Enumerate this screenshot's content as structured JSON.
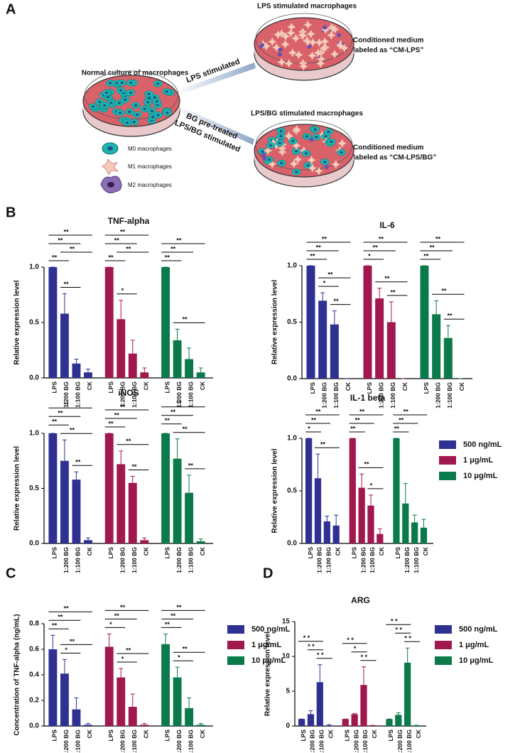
{
  "figure": {
    "panel_labels": [
      "A",
      "B",
      "C",
      "D"
    ],
    "panel_a": {
      "normal_title": "Normal culture of macrophages",
      "lps_title": "LPS stimulated macrophages",
      "lpsbg_title": "LPS/BG stimulated macrophages",
      "arrow1": "LPS stimulated",
      "arrow2_line1": "BG pre-treated",
      "arrow2_line2": "LPS/BG stimulated",
      "cm_lps": [
        "Conditioned medium",
        "labeled as “CM-LPS”"
      ],
      "cm_lpsbg": [
        "Conditioned medium",
        "labeled as “CM-LPS/BG”"
      ],
      "cell_legend": [
        "M0 macrophages",
        "M1 macrophages",
        "M2 macrophages"
      ]
    }
  },
  "chart_data": [
    {
      "type": "bar",
      "title": "TNF-alpha",
      "y_label": "Relative expression level",
      "categories": [
        "LPS",
        "1:200 BG",
        "1:100 BG",
        "CK"
      ],
      "ylim": [
        0,
        1
      ],
      "yticks": [
        {
          "value": 0,
          "label": "0.0"
        },
        0.5,
        {
          "value": 1,
          "label": "1.0"
        }
      ],
      "series": [
        {
          "color": "#2e3192",
          "values": [
            1.0,
            0.58,
            0.13,
            0.05
          ],
          "errors": [
            0,
            0.18,
            0.04,
            0.03
          ],
          "brackets": [
            [
              1,
              2,
              "**"
            ],
            [
              0,
              1,
              "**"
            ],
            [
              1,
              3,
              "**"
            ],
            [
              0,
              2,
              "**"
            ],
            [
              0,
              3,
              "**"
            ]
          ]
        },
        {
          "color": "#a0184e",
          "values": [
            1.0,
            0.53,
            0.22,
            0.05
          ],
          "errors": [
            0,
            0.17,
            0.12,
            0.04
          ],
          "brackets": [
            [
              1,
              2,
              "*"
            ],
            [
              0,
              1,
              "**"
            ],
            [
              1,
              3,
              "**"
            ],
            [
              0,
              2,
              "**"
            ],
            [
              0,
              3,
              "**"
            ]
          ]
        },
        {
          "color": "#0b7a4b",
          "values": [
            1.0,
            0.34,
            0.17,
            0.05
          ],
          "errors": [
            0,
            0.1,
            0.1,
            0.04
          ],
          "brackets": [
            [
              1,
              3,
              "**"
            ],
            [
              0,
              1,
              "**"
            ],
            [
              0,
              2,
              "**"
            ],
            [
              0,
              3,
              "**"
            ]
          ]
        }
      ]
    },
    {
      "type": "bar",
      "title": "IL-6",
      "y_label": "Relative expression level",
      "categories": [
        "LPS",
        "1:200 BG",
        "1:100 BG",
        "CK"
      ],
      "ylim": [
        0,
        1
      ],
      "yticks": [
        {
          "value": 0,
          "label": "0.0"
        },
        0.5,
        {
          "value": 1,
          "label": "1.0"
        }
      ],
      "series": [
        {
          "color": "#2e3192",
          "values": [
            1.0,
            0.69,
            0.48,
            0
          ],
          "errors": [
            0,
            0.07,
            0.12,
            0
          ],
          "brackets": [
            [
              2,
              3,
              "**"
            ],
            [
              1,
              2,
              "*"
            ],
            [
              1,
              3,
              "**"
            ],
            [
              0,
              1,
              "**"
            ],
            [
              0,
              2,
              "**"
            ],
            [
              0,
              3,
              "**"
            ]
          ]
        },
        {
          "color": "#a0184e",
          "values": [
            1.0,
            0.71,
            0.5,
            0
          ],
          "errors": [
            0,
            0.09,
            0.18,
            0
          ],
          "brackets": [
            [
              2,
              3,
              "**"
            ],
            [
              1,
              3,
              "**"
            ],
            [
              0,
              1,
              "*"
            ],
            [
              0,
              2,
              "**"
            ],
            [
              0,
              3,
              "**"
            ]
          ]
        },
        {
          "color": "#0b7a4b",
          "values": [
            1.0,
            0.57,
            0.36,
            0
          ],
          "errors": [
            0,
            0.12,
            0.11,
            0
          ],
          "brackets": [
            [
              2,
              3,
              "**"
            ],
            [
              1,
              3,
              "**"
            ],
            [
              0,
              1,
              "**"
            ],
            [
              0,
              2,
              "**"
            ],
            [
              0,
              3,
              "**"
            ]
          ]
        }
      ]
    },
    {
      "type": "bar",
      "title": "iNOS",
      "y_label": "Relative expression level",
      "categories": [
        "LPS",
        "1:200 BG",
        "1:100 BG",
        "CK"
      ],
      "ylim": [
        0,
        1
      ],
      "yticks": [
        {
          "value": 0,
          "label": "0.0"
        },
        0.5,
        {
          "value": 1,
          "label": "1.0"
        }
      ],
      "series": [
        {
          "color": "#2e3192",
          "values": [
            1.0,
            0.75,
            0.58,
            0.03
          ],
          "errors": [
            0,
            0.19,
            0.07,
            0.02
          ],
          "brackets": [
            [
              2,
              3,
              "**"
            ],
            [
              1,
              3,
              "**"
            ],
            [
              0,
              1,
              "**"
            ],
            [
              0,
              2,
              "**"
            ],
            [
              0,
              3,
              "**"
            ]
          ]
        },
        {
          "color": "#a0184e",
          "values": [
            1.0,
            0.72,
            0.55,
            0.03
          ],
          "errors": [
            0,
            0.12,
            0.06,
            0.02
          ],
          "brackets": [
            [
              2,
              3,
              "**"
            ],
            [
              1,
              3,
              "**"
            ],
            [
              0,
              1,
              "**"
            ],
            [
              0,
              2,
              "**"
            ],
            [
              0,
              3,
              "**"
            ]
          ]
        },
        {
          "color": "#0b7a4b",
          "values": [
            1.0,
            0.77,
            0.46,
            0.02
          ],
          "errors": [
            0,
            0.18,
            0.16,
            0.02
          ],
          "brackets": [
            [
              2,
              3,
              "**"
            ],
            [
              1,
              3,
              "**"
            ],
            [
              0,
              1,
              "**"
            ],
            [
              0,
              2,
              "**"
            ],
            [
              0,
              3,
              "**"
            ]
          ]
        }
      ]
    },
    {
      "type": "bar",
      "title": "IL-1 beta",
      "y_label": "Relative expression level",
      "categories": [
        "LPS",
        "1:200 BG",
        "1:100 BG",
        "CK"
      ],
      "ylim": [
        0,
        1
      ],
      "yticks": [
        {
          "value": 0,
          "label": "0.0"
        },
        0.5,
        {
          "value": 1,
          "label": "1.0"
        }
      ],
      "legend": true,
      "series": [
        {
          "name": "500 ng/mL",
          "color": "#2e3192",
          "values": [
            1.0,
            0.62,
            0.21,
            0.17
          ],
          "errors": [
            0,
            0.23,
            0.05,
            0.1
          ],
          "brackets": [
            [
              1,
              3,
              "**"
            ],
            [
              0,
              1,
              "*"
            ],
            [
              0,
              2,
              "**"
            ],
            [
              0,
              3,
              "**"
            ]
          ]
        },
        {
          "name": "1 μg/mL",
          "color": "#a0184e",
          "values": [
            1.0,
            0.53,
            0.36,
            0.09
          ],
          "errors": [
            0,
            0.13,
            0.1,
            0.05
          ],
          "brackets": [
            [
              2,
              3,
              "*"
            ],
            [
              1,
              3,
              "**"
            ],
            [
              0,
              1,
              "**"
            ],
            [
              0,
              2,
              "**"
            ],
            [
              0,
              3,
              "**"
            ]
          ]
        },
        {
          "name": "10 μg/mL",
          "color": "#0b7a4b",
          "values": [
            1.0,
            0.38,
            0.2,
            0.15
          ],
          "errors": [
            0,
            0.19,
            0.07,
            0.08
          ],
          "brackets": [
            [
              0,
              1,
              "**"
            ],
            [
              0,
              2,
              "**"
            ],
            [
              0,
              3,
              "**"
            ]
          ]
        }
      ]
    },
    {
      "type": "bar",
      "y_label": "Concentration of TNF-alpha (ng/mL)",
      "categories": [
        "LPS",
        "1:200 BG",
        "1:100 BG",
        "CK"
      ],
      "ylim": [
        0,
        0.8
      ],
      "yticks": [
        {
          "value": 0,
          "label": "0.0"
        },
        0.2,
        0.4,
        0.6,
        0.8
      ],
      "legend": true,
      "series": [
        {
          "name": "500 ng/mL",
          "color": "#2e3192",
          "values": [
            0.6,
            0.41,
            0.13,
            0.01
          ],
          "errors": [
            0.11,
            0.11,
            0.09,
            0.01
          ],
          "brackets": [
            [
              1,
              2,
              "*"
            ],
            [
              1,
              3,
              "**"
            ],
            [
              0,
              1,
              "**"
            ],
            [
              0,
              2,
              "**"
            ],
            [
              0,
              3,
              "**"
            ]
          ]
        },
        {
          "name": "1 μg/mL",
          "color": "#a0184e",
          "values": [
            0.62,
            0.38,
            0.15,
            0.01
          ],
          "errors": [
            0.1,
            0.07,
            0.1,
            0.01
          ],
          "brackets": [
            [
              1,
              2,
              "*"
            ],
            [
              1,
              3,
              "**"
            ],
            [
              0,
              1,
              "*"
            ],
            [
              0,
              2,
              "**"
            ],
            [
              0,
              3,
              "**"
            ]
          ]
        },
        {
          "name": "10 μg/mL",
          "color": "#0b7a4b",
          "values": [
            0.64,
            0.38,
            0.14,
            0.01
          ],
          "errors": [
            0.08,
            0.08,
            0.08,
            0.01
          ],
          "brackets": [
            [
              1,
              2,
              "*"
            ],
            [
              1,
              3,
              "**"
            ],
            [
              0,
              1,
              "**"
            ],
            [
              0,
              2,
              "**"
            ],
            [
              0,
              3,
              "**"
            ]
          ]
        }
      ]
    },
    {
      "type": "bar",
      "title": "ARG",
      "y_label": "Relative expression level",
      "categories": [
        "LPS",
        "1:200 BG",
        "1:100 BG",
        "CK"
      ],
      "ylim": [
        0,
        15
      ],
      "yticks": [
        0,
        5,
        10,
        15
      ],
      "legend": true,
      "series": [
        {
          "name": "500 ng/mL",
          "color": "#2e3192",
          "values": [
            1.0,
            1.7,
            6.3,
            0.1
          ],
          "errors": [
            0,
            0.5,
            2.5,
            0.1
          ],
          "brackets": [
            [
              2,
              3,
              "* *"
            ],
            [
              1,
              2,
              "* *"
            ],
            [
              0,
              2,
              "* *"
            ]
          ]
        },
        {
          "name": "1 μg/mL",
          "color": "#a0184e",
          "values": [
            1.0,
            1.7,
            5.9,
            0.1
          ],
          "errors": [
            0,
            0.1,
            2.6,
            0
          ],
          "brackets": [
            [
              2,
              3,
              "* *"
            ],
            [
              1,
              2,
              "*"
            ],
            [
              0,
              2,
              "* *"
            ]
          ]
        },
        {
          "name": "10 μg/mL",
          "color": "#0b7a4b",
          "values": [
            1.0,
            1.6,
            9.1,
            0.1
          ],
          "errors": [
            0,
            0.3,
            2.1,
            0
          ],
          "brackets": [
            [
              2,
              3,
              "* *"
            ],
            [
              1,
              2,
              "* *"
            ],
            [
              0,
              2,
              "* *"
            ]
          ]
        }
      ]
    }
  ]
}
